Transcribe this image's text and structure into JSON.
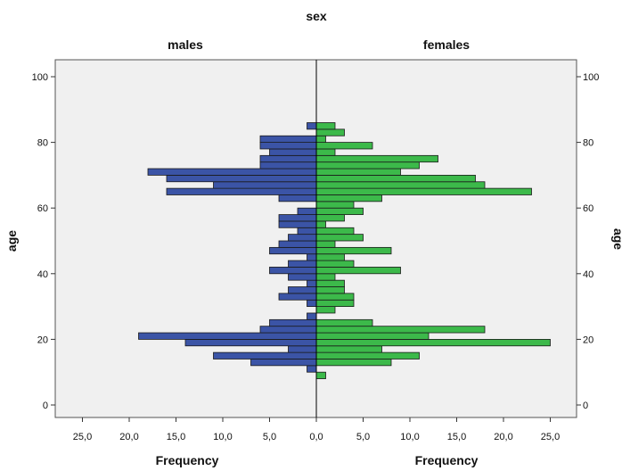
{
  "chart_data": {
    "type": "bar",
    "orientation": "horizontal",
    "title": "sex",
    "panels": [
      "males",
      "females"
    ],
    "ylabel": "age",
    "xlabel": "Frequency",
    "ylim": [
      0,
      100
    ],
    "y_ticks": [
      "0",
      "20",
      "40",
      "60",
      "80",
      "100"
    ],
    "xlim": [
      0,
      25
    ],
    "x_ticks_left": [
      "25,0",
      "20,0",
      "15,0",
      "10,0",
      "5,0",
      "0,0"
    ],
    "x_ticks_right": [
      "0,0",
      "5,0",
      "10,0",
      "15,0",
      "20,0",
      "25,0"
    ],
    "bin_width": 2,
    "series": [
      {
        "name": "males",
        "color": "#3b54a6",
        "bins": [
          {
            "age": 12,
            "value": 1
          },
          {
            "age": 14,
            "value": 7
          },
          {
            "age": 16,
            "value": 11
          },
          {
            "age": 18,
            "value": 3
          },
          {
            "age": 20,
            "value": 14
          },
          {
            "age": 22,
            "value": 19
          },
          {
            "age": 24,
            "value": 6
          },
          {
            "age": 26,
            "value": 5
          },
          {
            "age": 28,
            "value": 1
          },
          {
            "age": 32,
            "value": 1
          },
          {
            "age": 34,
            "value": 4
          },
          {
            "age": 36,
            "value": 3
          },
          {
            "age": 38,
            "value": 1
          },
          {
            "age": 40,
            "value": 3
          },
          {
            "age": 42,
            "value": 5
          },
          {
            "age": 44,
            "value": 3
          },
          {
            "age": 46,
            "value": 1
          },
          {
            "age": 48,
            "value": 5
          },
          {
            "age": 50,
            "value": 4
          },
          {
            "age": 52,
            "value": 3
          },
          {
            "age": 54,
            "value": 2
          },
          {
            "age": 56,
            "value": 4
          },
          {
            "age": 58,
            "value": 4
          },
          {
            "age": 60,
            "value": 2
          },
          {
            "age": 64,
            "value": 4
          },
          {
            "age": 66,
            "value": 16
          },
          {
            "age": 68,
            "value": 11
          },
          {
            "age": 70,
            "value": 16
          },
          {
            "age": 72,
            "value": 18
          },
          {
            "age": 74,
            "value": 6
          },
          {
            "age": 76,
            "value": 6
          },
          {
            "age": 78,
            "value": 5
          },
          {
            "age": 80,
            "value": 6
          },
          {
            "age": 82,
            "value": 6
          },
          {
            "age": 86,
            "value": 1
          }
        ]
      },
      {
        "name": "females",
        "color": "#3cb94a",
        "bins": [
          {
            "age": 10,
            "value": 1
          },
          {
            "age": 14,
            "value": 8
          },
          {
            "age": 16,
            "value": 11
          },
          {
            "age": 18,
            "value": 7
          },
          {
            "age": 20,
            "value": 25
          },
          {
            "age": 22,
            "value": 12
          },
          {
            "age": 24,
            "value": 18
          },
          {
            "age": 26,
            "value": 6
          },
          {
            "age": 30,
            "value": 2
          },
          {
            "age": 32,
            "value": 4
          },
          {
            "age": 34,
            "value": 4
          },
          {
            "age": 36,
            "value": 3
          },
          {
            "age": 38,
            "value": 3
          },
          {
            "age": 40,
            "value": 2
          },
          {
            "age": 42,
            "value": 9
          },
          {
            "age": 44,
            "value": 4
          },
          {
            "age": 46,
            "value": 3
          },
          {
            "age": 48,
            "value": 8
          },
          {
            "age": 50,
            "value": 2
          },
          {
            "age": 52,
            "value": 5
          },
          {
            "age": 54,
            "value": 4
          },
          {
            "age": 56,
            "value": 1
          },
          {
            "age": 58,
            "value": 3
          },
          {
            "age": 60,
            "value": 5
          },
          {
            "age": 62,
            "value": 4
          },
          {
            "age": 64,
            "value": 7
          },
          {
            "age": 66,
            "value": 23
          },
          {
            "age": 68,
            "value": 18
          },
          {
            "age": 70,
            "value": 17
          },
          {
            "age": 72,
            "value": 9
          },
          {
            "age": 74,
            "value": 11
          },
          {
            "age": 76,
            "value": 13
          },
          {
            "age": 78,
            "value": 2
          },
          {
            "age": 80,
            "value": 6
          },
          {
            "age": 82,
            "value": 1
          },
          {
            "age": 84,
            "value": 3
          },
          {
            "age": 86,
            "value": 2
          }
        ]
      }
    ],
    "grid": false,
    "background": "#f0f0f0"
  }
}
